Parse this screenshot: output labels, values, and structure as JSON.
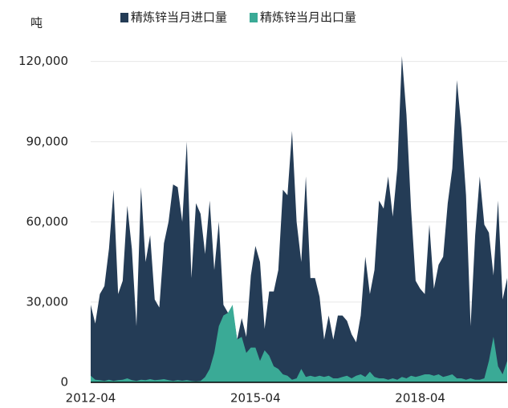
{
  "chart_data": {
    "type": "area",
    "y_label": "吨",
    "categories": [
      "2012-04",
      null,
      null,
      null,
      null,
      null,
      null,
      null,
      null,
      null,
      null,
      null,
      null,
      null,
      null,
      null,
      null,
      null,
      null,
      null,
      null,
      null,
      null,
      null,
      null,
      null,
      null,
      null,
      null,
      null,
      null,
      null,
      null,
      null,
      null,
      null,
      "2015-04",
      null,
      null,
      null,
      null,
      null,
      null,
      null,
      null,
      null,
      null,
      null,
      null,
      null,
      null,
      null,
      null,
      null,
      null,
      null,
      null,
      null,
      null,
      null,
      null,
      null,
      null,
      null,
      null,
      null,
      null,
      null,
      null,
      null,
      null,
      null,
      "2018-04",
      null,
      null,
      null,
      null,
      null,
      null,
      null,
      null,
      null,
      null,
      null,
      null,
      null,
      null,
      null,
      null,
      null,
      null,
      null
    ],
    "series": [
      {
        "name": "精炼锌当月进口量",
        "color": "#243c56",
        "values": [
          29000,
          22000,
          33000,
          36000,
          50000,
          72000,
          33000,
          38000,
          66000,
          50000,
          21000,
          73000,
          45000,
          55000,
          31000,
          28000,
          52000,
          60000,
          74000,
          73000,
          60000,
          90000,
          39000,
          67000,
          63000,
          48000,
          68000,
          42000,
          60000,
          29000,
          26000,
          28000,
          16000,
          24000,
          17000,
          40000,
          51000,
          45000,
          20000,
          34000,
          34000,
          42000,
          72000,
          70000,
          94000,
          60000,
          45000,
          77000,
          39000,
          39000,
          32000,
          16000,
          25000,
          16000,
          25000,
          25000,
          23000,
          18000,
          15000,
          25000,
          47000,
          33000,
          42000,
          68000,
          65000,
          77000,
          62000,
          80000,
          122000,
          100000,
          65000,
          38000,
          35000,
          33000,
          59000,
          35000,
          44000,
          47000,
          67000,
          80000,
          113000,
          95000,
          70000,
          21000,
          55000,
          77000,
          59000,
          56000,
          40000,
          68000,
          31000,
          39000
        ]
      },
      {
        "name": "精炼锌当月出口量",
        "color": "#3aaa96",
        "values": [
          2500,
          1000,
          800,
          500,
          1000,
          500,
          800,
          1000,
          1500,
          800,
          500,
          1000,
          800,
          1200,
          800,
          1000,
          1200,
          800,
          500,
          800,
          600,
          800,
          500,
          400,
          500,
          2000,
          5000,
          11000,
          21000,
          25000,
          26000,
          29000,
          16000,
          17000,
          11000,
          13000,
          13000,
          8000,
          12000,
          10000,
          6000,
          5000,
          3000,
          2500,
          1000,
          1500,
          5000,
          2000,
          2500,
          2000,
          2500,
          2000,
          2500,
          1500,
          1500,
          2000,
          2500,
          1500,
          2500,
          3000,
          2000,
          4000,
          2000,
          1500,
          1500,
          1000,
          1500,
          1000,
          2000,
          1500,
          2500,
          2000,
          2500,
          3000,
          3000,
          2500,
          3000,
          2000,
          2500,
          3000,
          1500,
          1500,
          1000,
          1500,
          1000,
          1000,
          1500,
          8000,
          17000,
          6000,
          3000,
          8000
        ]
      }
    ],
    "ylim": [
      0,
      125000
    ],
    "yticks": [
      0,
      {
        "value": 30000,
        "label": "30,000"
      },
      {
        "value": 60000,
        "label": "60,000"
      },
      {
        "value": 90000,
        "label": "90,000"
      },
      {
        "value": 120000,
        "label": "120,000"
      }
    ],
    "grid": true,
    "legend": "top"
  }
}
